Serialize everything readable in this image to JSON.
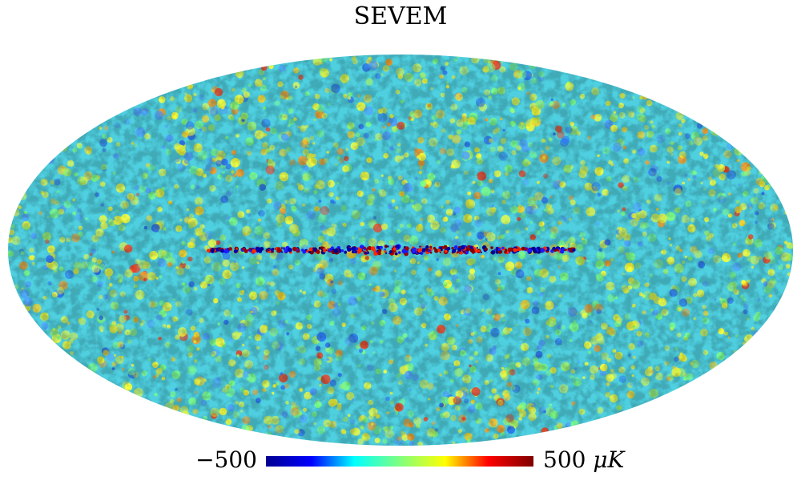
{
  "title": "SEVEM",
  "colorbar": {
    "min_label": "−500",
    "max_label": "500",
    "unit": "μK",
    "min_value": -500,
    "max_value": 500,
    "colormap": [
      "#00008f",
      "#0000ff",
      "#00ffff",
      "#7fff7f",
      "#ffff00",
      "#ff0000",
      "#7f0000"
    ]
  },
  "map": {
    "projection": "Mollweide",
    "background_color": "#4fd0e0"
  }
}
